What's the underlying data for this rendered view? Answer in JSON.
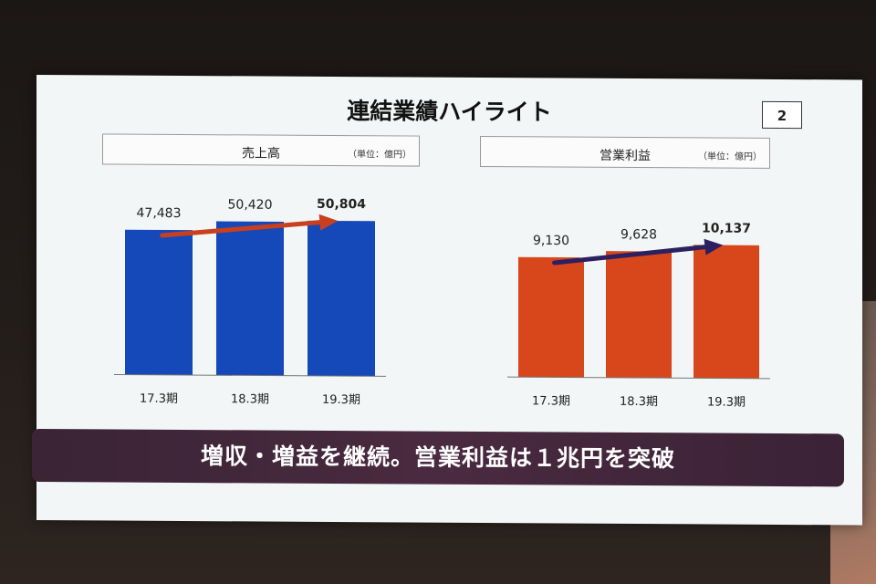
{
  "slide": {
    "title": "連結業績ハイライト",
    "page_number": "2",
    "banner": "増収・増益を継続。営業利益は１兆円を突破"
  },
  "chart_data": [
    {
      "type": "bar",
      "title": "売上高",
      "unit": "（単位：億円）",
      "categories": [
        "17.3期",
        "18.3期",
        "19.3期"
      ],
      "values": [
        47483,
        50420,
        50804
      ],
      "value_labels": [
        "47,483",
        "50,420",
        "50,804"
      ],
      "bar_color": "#1548b8",
      "arrow_color": "#c8401e",
      "highlight_last": true
    },
    {
      "type": "bar",
      "title": "営業利益",
      "unit": "（単位：億円）",
      "categories": [
        "17.3期",
        "18.3期",
        "19.3期"
      ],
      "values": [
        9130,
        9628,
        10137
      ],
      "value_labels": [
        "9,130",
        "9,628",
        "10,137"
      ],
      "bar_color": "#d8471c",
      "arrow_color": "#2c2060",
      "highlight_last": true
    }
  ]
}
